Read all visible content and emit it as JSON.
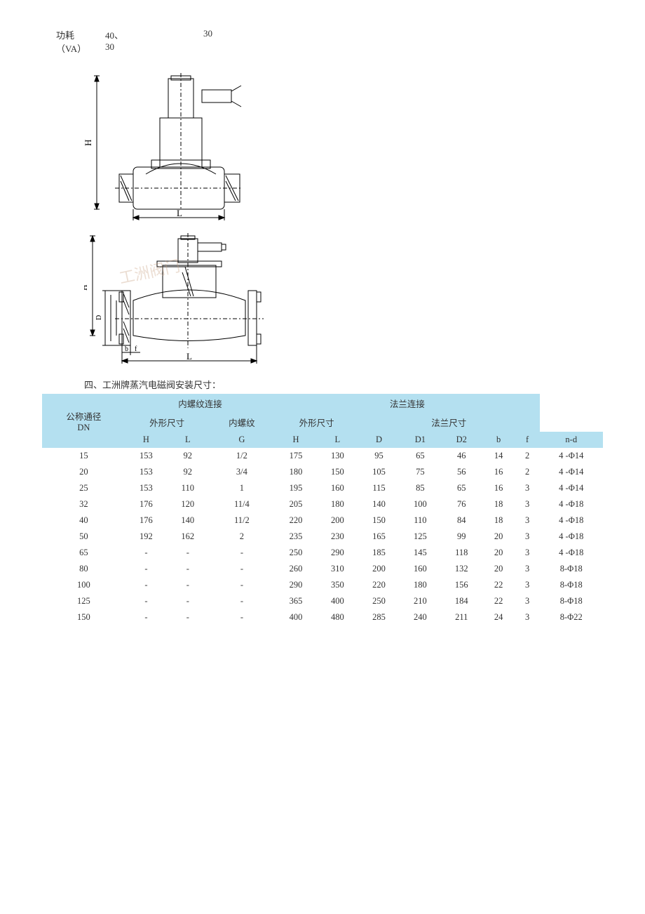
{
  "topSpec": {
    "label": "功耗",
    "unit": "（VA）",
    "colA_line1": "40、",
    "colA_line2": "30",
    "colB_line1": "30"
  },
  "diagram": {
    "label_H": "H",
    "label_L": "L",
    "label_D": "D",
    "label_D1": "D1",
    "label_D2": "D2",
    "label_b": "b",
    "label_f": "f",
    "watermark": "工洲阀门"
  },
  "sectionTitle": "四、工洲牌蒸汽电磁阀安装尺寸：",
  "headers": {
    "dn": "公称通径",
    "dnUnit": "DN",
    "threadConn": "内螺纹连接",
    "flangeConn": "法兰连接",
    "outline": "外形尺寸",
    "thread": "内螺纹",
    "flangeDim": "法兰尺寸",
    "H": "H",
    "L": "L",
    "G": "G",
    "D": "D",
    "D1": "D1",
    "D2": "D2",
    "b": "b",
    "f": "f",
    "nd": "n-d"
  },
  "rows": [
    {
      "dn": "15",
      "th": "153",
      "tl": "92",
      "g": "1/2",
      "fh": "175",
      "fl": "130",
      "d": "95",
      "d1": "65",
      "d2": "46",
      "b": "14",
      "f": "2",
      "nd": "4 -Φ14"
    },
    {
      "dn": "20",
      "th": "153",
      "tl": "92",
      "g": "3/4",
      "fh": "180",
      "fl": "150",
      "d": "105",
      "d1": "75",
      "d2": "56",
      "b": "16",
      "f": "2",
      "nd": "4 -Φ14"
    },
    {
      "dn": "25",
      "th": "153",
      "tl": "110",
      "g": "1",
      "fh": "195",
      "fl": "160",
      "d": "115",
      "d1": "85",
      "d2": "65",
      "b": "16",
      "f": "3",
      "nd": "4 -Φ14"
    },
    {
      "dn": "32",
      "th": "176",
      "tl": "120",
      "g": "11/4",
      "fh": "205",
      "fl": "180",
      "d": "140",
      "d1": "100",
      "d2": "76",
      "b": "18",
      "f": "3",
      "nd": "4 -Φ18"
    },
    {
      "dn": "40",
      "th": "176",
      "tl": "140",
      "g": "11/2",
      "fh": "220",
      "fl": "200",
      "d": "150",
      "d1": "110",
      "d2": "84",
      "b": "18",
      "f": "3",
      "nd": "4 -Φ18"
    },
    {
      "dn": "50",
      "th": "192",
      "tl": "162",
      "g": "2",
      "fh": "235",
      "fl": "230",
      "d": "165",
      "d1": "125",
      "d2": "99",
      "b": "20",
      "f": "3",
      "nd": "4 -Φ18"
    },
    {
      "dn": "65",
      "th": "-",
      "tl": "-",
      "g": "-",
      "fh": "250",
      "fl": "290",
      "d": "185",
      "d1": "145",
      "d2": "118",
      "b": "20",
      "f": "3",
      "nd": "4 -Φ18"
    },
    {
      "dn": "80",
      "th": "-",
      "tl": "-",
      "g": "-",
      "fh": "260",
      "fl": "310",
      "d": "200",
      "d1": "160",
      "d2": "132",
      "b": "20",
      "f": "3",
      "nd": "8-Φ18"
    },
    {
      "dn": "100",
      "th": "-",
      "tl": "-",
      "g": "-",
      "fh": "290",
      "fl": "350",
      "d": "220",
      "d1": "180",
      "d2": "156",
      "b": "22",
      "f": "3",
      "nd": "8-Φ18"
    },
    {
      "dn": "125",
      "th": "-",
      "tl": "-",
      "g": "-",
      "fh": "365",
      "fl": "400",
      "d": "250",
      "d1": "210",
      "d2": "184",
      "b": "22",
      "f": "3",
      "nd": "8-Φ18"
    },
    {
      "dn": "150",
      "th": "-",
      "tl": "-",
      "g": "-",
      "fh": "400",
      "fl": "480",
      "d": "285",
      "d1": "240",
      "d2": "211",
      "b": "24",
      "f": "3",
      "nd": "8-Φ22"
    }
  ],
  "style": {
    "headerBg": "#b4e0f0",
    "textColor": "#333333",
    "fontSize": 13
  }
}
